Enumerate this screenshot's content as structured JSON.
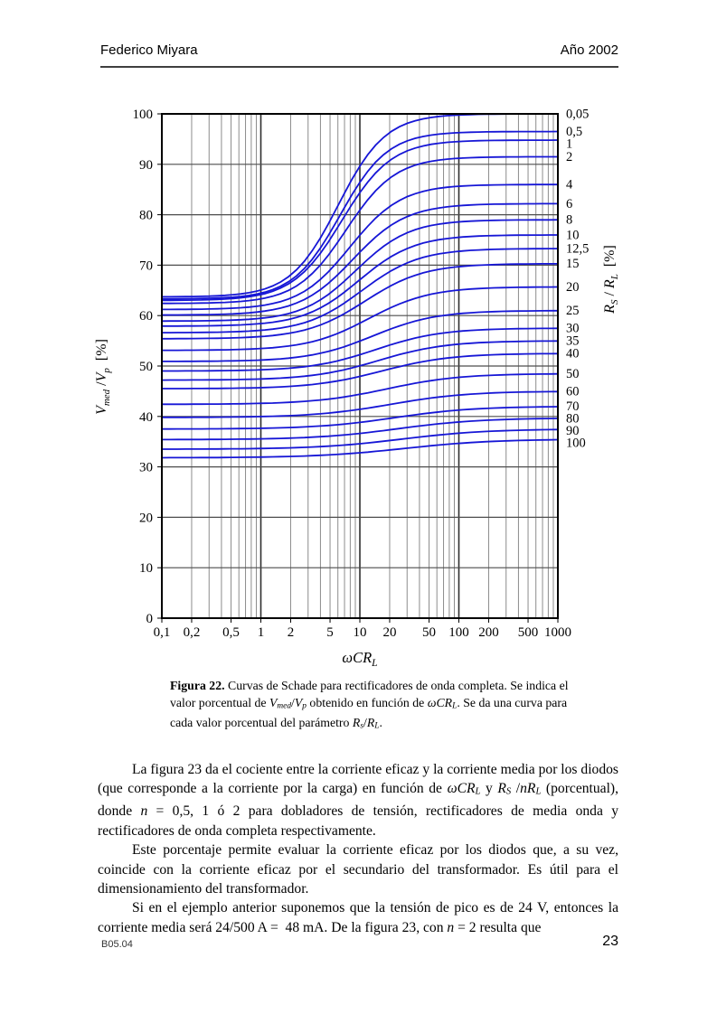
{
  "header": {
    "author": "Federico Miyara",
    "year": "Año 2002"
  },
  "footer": {
    "doc_code": "B05.04",
    "page_number": "23"
  },
  "caption": {
    "segments": [
      {
        "t": "Figura 22.",
        "s": "b"
      },
      {
        "t": " Curvas de Schade para rectificadores de onda completa. Se indica el valor porcentual de "
      },
      {
        "t": "V",
        "s": "i"
      },
      {
        "t": "med",
        "s": "isub"
      },
      {
        "t": "/"
      },
      {
        "t": "V",
        "s": "i"
      },
      {
        "t": "p",
        "s": "isub"
      },
      {
        "t": " obtenido en función de "
      },
      {
        "t": "ω",
        "s": "i"
      },
      {
        "t": "CR",
        "s": "i"
      },
      {
        "t": "L",
        "s": "isub"
      },
      {
        "t": ". Se da una curva para cada valor porcentual del parámetro "
      },
      {
        "t": "R",
        "s": "i"
      },
      {
        "t": "s",
        "s": "isub"
      },
      {
        "t": "/"
      },
      {
        "t": "R",
        "s": "i"
      },
      {
        "t": "L",
        "s": "isub"
      },
      {
        "t": "."
      }
    ]
  },
  "paragraphs": [
    {
      "segments": [
        {
          "t": "La figura 23 da el cociente entre la corriente eficaz y la corriente media por los diodos (que corresponde a la corriente por la carga) en función de "
        },
        {
          "t": "ω",
          "s": "i"
        },
        {
          "t": "CR",
          "s": "i"
        },
        {
          "t": "L",
          "s": "isub"
        },
        {
          "t": " y "
        },
        {
          "t": "R",
          "s": "i"
        },
        {
          "t": "S",
          "s": "isub"
        },
        {
          "t": " /"
        },
        {
          "t": "nR",
          "s": "i"
        },
        {
          "t": "L",
          "s": "isub"
        },
        {
          "t": " (porcentual), donde "
        },
        {
          "t": "n",
          "s": "i"
        },
        {
          "t": " = 0,5, 1 ó 2 para dobladores de tensión, rectificadores de media onda y rectificadores de onda completa respectivamente."
        }
      ]
    },
    {
      "segments": [
        {
          "t": "Este porcentaje permite evaluar la corriente eficaz por los diodos que, a su vez, coincide con la corriente eficaz por el secundario del transformador. Es útil para el dimensionamiento del transformador."
        }
      ]
    },
    {
      "segments": [
        {
          "t": "Si en el ejemplo anterior suponemos que la tensión de pico es de 24 V, entonces la corriente media será 24/500 A =  48 mA. De la figura 23, con "
        },
        {
          "t": "n",
          "s": "i"
        },
        {
          "t": " = 2 resulta que"
        }
      ]
    }
  ],
  "chart_data": {
    "type": "line",
    "title": "Curvas de Schade para rectificadores de onda completa",
    "x_scale": "log",
    "x_range": [
      0.1,
      1000
    ],
    "y_range": [
      0,
      100
    ],
    "grid": "log minor verticals each decade; horizontal gridlines every 10%",
    "legend_position": "right-edge labels, one per curve",
    "curve_color": "#1616d6",
    "xlabel_segments": [
      {
        "t": "ω",
        "s": "i"
      },
      {
        "t": "CR",
        "s": "i"
      },
      {
        "t": "L",
        "s": "isub"
      }
    ],
    "left_axis_segments": [
      {
        "t": "V",
        "s": "i"
      },
      {
        "t": "med",
        "s": "isub"
      },
      {
        "t": " /"
      },
      {
        "t": "V",
        "s": "i"
      },
      {
        "t": "p",
        "s": "isub"
      },
      {
        "t": "  [%]"
      }
    ],
    "right_axis_segments": [
      {
        "t": "R",
        "s": "i"
      },
      {
        "t": "S",
        "s": "isub"
      },
      {
        "t": " / "
      },
      {
        "t": "R",
        "s": "i"
      },
      {
        "t": "L",
        "s": "isub"
      },
      {
        "t": "  [%]"
      }
    ],
    "x_tick_labels": [
      {
        "v": 0.1,
        "label": "0,1"
      },
      {
        "v": 0.2,
        "label": "0,2"
      },
      {
        "v": 0.5,
        "label": "0,5"
      },
      {
        "v": 1,
        "label": "1"
      },
      {
        "v": 2,
        "label": "2"
      },
      {
        "v": 5,
        "label": "5"
      },
      {
        "v": 10,
        "label": "10"
      },
      {
        "v": 20,
        "label": "20"
      },
      {
        "v": 50,
        "label": "50"
      },
      {
        "v": 100,
        "label": "100"
      },
      {
        "v": 200,
        "label": "200"
      },
      {
        "v": 500,
        "label": "500"
      },
      {
        "v": 1000,
        "label": "1000"
      }
    ],
    "y_ticks": [
      0,
      10,
      20,
      30,
      40,
      50,
      60,
      70,
      80,
      90,
      100
    ],
    "series_note": "Each curve: Vmed/Vp [%] vs wCRL for parameter RS/RL [%]; y_left_pct = value at wCRL=0.1, y_right_pct = value at wCRL=1000; sigmoid transition in log10(x) centered at log_center with width log_width",
    "series": [
      {
        "label": "0,05",
        "rs_rl_pct": 0.05,
        "y_left_pct": 63.7,
        "y_right_pct": 100.0,
        "log_center": 0.78,
        "log_width": 0.24
      },
      {
        "label": "0,5",
        "rs_rl_pct": 0.5,
        "y_left_pct": 63.3,
        "y_right_pct": 96.5,
        "log_center": 0.8,
        "log_width": 0.24
      },
      {
        "label": "1",
        "rs_rl_pct": 1,
        "y_left_pct": 63.0,
        "y_right_pct": 94.8,
        "log_center": 0.82,
        "log_width": 0.25
      },
      {
        "label": "2",
        "rs_rl_pct": 2,
        "y_left_pct": 62.4,
        "y_right_pct": 91.5,
        "log_center": 0.86,
        "log_width": 0.25
      },
      {
        "label": "4",
        "rs_rl_pct": 4,
        "y_left_pct": 61.2,
        "y_right_pct": 86.0,
        "log_center": 0.9,
        "log_width": 0.26
      },
      {
        "label": "6",
        "rs_rl_pct": 6,
        "y_left_pct": 60.1,
        "y_right_pct": 82.2,
        "log_center": 0.93,
        "log_width": 0.27
      },
      {
        "label": "8",
        "rs_rl_pct": 8,
        "y_left_pct": 58.9,
        "y_right_pct": 79.0,
        "log_center": 0.96,
        "log_width": 0.27
      },
      {
        "label": "10",
        "rs_rl_pct": 10,
        "y_left_pct": 57.9,
        "y_right_pct": 76.0,
        "log_center": 0.99,
        "log_width": 0.28
      },
      {
        "label": "12,5",
        "rs_rl_pct": 12.5,
        "y_left_pct": 56.6,
        "y_right_pct": 73.3,
        "log_center": 1.02,
        "log_width": 0.29
      },
      {
        "label": "15",
        "rs_rl_pct": 15,
        "y_left_pct": 55.4,
        "y_right_pct": 70.3,
        "log_center": 1.05,
        "log_width": 0.3
      },
      {
        "label": "20",
        "rs_rl_pct": 20,
        "y_left_pct": 53.1,
        "y_right_pct": 65.7,
        "log_center": 1.09,
        "log_width": 0.31
      },
      {
        "label": "25",
        "rs_rl_pct": 25,
        "y_left_pct": 50.9,
        "y_right_pct": 61.0,
        "log_center": 1.13,
        "log_width": 0.32
      },
      {
        "label": "30",
        "rs_rl_pct": 30,
        "y_left_pct": 49.0,
        "y_right_pct": 57.5,
        "log_center": 1.16,
        "log_width": 0.33
      },
      {
        "label": "35",
        "rs_rl_pct": 35,
        "y_left_pct": 47.2,
        "y_right_pct": 55.0,
        "log_center": 1.19,
        "log_width": 0.34
      },
      {
        "label": "40",
        "rs_rl_pct": 40,
        "y_left_pct": 45.5,
        "y_right_pct": 52.5,
        "log_center": 1.22,
        "log_width": 0.35
      },
      {
        "label": "50",
        "rs_rl_pct": 50,
        "y_left_pct": 42.4,
        "y_right_pct": 48.5,
        "log_center": 1.27,
        "log_width": 0.37
      },
      {
        "label": "60",
        "rs_rl_pct": 60,
        "y_left_pct": 39.8,
        "y_right_pct": 45.0,
        "log_center": 1.31,
        "log_width": 0.39
      },
      {
        "label": "70",
        "rs_rl_pct": 70,
        "y_left_pct": 37.5,
        "y_right_pct": 42.0,
        "log_center": 1.35,
        "log_width": 0.4
      },
      {
        "label": "80",
        "rs_rl_pct": 80,
        "y_left_pct": 35.4,
        "y_right_pct": 39.7,
        "log_center": 1.38,
        "log_width": 0.42
      },
      {
        "label": "90",
        "rs_rl_pct": 90,
        "y_left_pct": 33.5,
        "y_right_pct": 37.5,
        "log_center": 1.42,
        "log_width": 0.43
      },
      {
        "label": "100",
        "rs_rl_pct": 100,
        "y_left_pct": 31.8,
        "y_right_pct": 35.5,
        "log_center": 1.45,
        "log_width": 0.45
      }
    ]
  }
}
